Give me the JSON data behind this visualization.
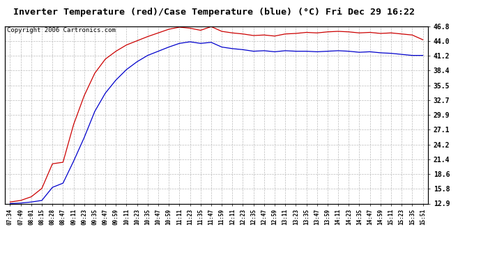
{
  "title": "Inverter Temperature (red)/Case Temperature (blue) (°C) Fri Dec 29 16:22",
  "copyright": "Copyright 2006 Cartronics.com",
  "ylabel_ticks": [
    12.9,
    15.8,
    18.6,
    21.4,
    24.2,
    27.1,
    29.9,
    32.7,
    35.5,
    38.4,
    41.2,
    44.0,
    46.8
  ],
  "ylim": [
    12.9,
    46.8
  ],
  "x_labels": [
    "07:34",
    "07:49",
    "08:01",
    "08:15",
    "08:28",
    "08:47",
    "09:11",
    "09:23",
    "09:35",
    "09:47",
    "09:59",
    "10:11",
    "10:23",
    "10:35",
    "10:47",
    "10:59",
    "11:11",
    "11:23",
    "11:35",
    "11:47",
    "11:59",
    "12:11",
    "12:23",
    "12:35",
    "12:47",
    "12:59",
    "13:11",
    "13:23",
    "13:35",
    "13:47",
    "13:59",
    "14:11",
    "14:23",
    "14:35",
    "14:47",
    "14:59",
    "15:11",
    "15:23",
    "15:35",
    "15:51"
  ],
  "red_data": [
    13.2,
    13.5,
    14.2,
    15.8,
    20.5,
    20.8,
    28.0,
    33.5,
    37.8,
    40.5,
    42.0,
    43.2,
    44.0,
    44.8,
    45.5,
    46.2,
    46.6,
    46.4,
    46.0,
    46.7,
    45.8,
    45.5,
    45.3,
    45.0,
    45.1,
    44.9,
    45.3,
    45.4,
    45.6,
    45.5,
    45.7,
    45.8,
    45.7,
    45.5,
    45.6,
    45.4,
    45.5,
    45.3,
    45.1,
    44.2
  ],
  "blue_data": [
    12.9,
    13.0,
    13.2,
    13.5,
    16.0,
    16.8,
    21.0,
    25.5,
    30.5,
    34.0,
    36.5,
    38.5,
    40.0,
    41.2,
    42.0,
    42.8,
    43.5,
    43.8,
    43.5,
    43.7,
    42.8,
    42.5,
    42.3,
    42.0,
    42.1,
    41.9,
    42.1,
    42.0,
    42.0,
    41.9,
    42.0,
    42.1,
    42.0,
    41.8,
    41.9,
    41.7,
    41.6,
    41.4,
    41.2,
    41.2
  ],
  "red_color": "#cc0000",
  "blue_color": "#0000cc",
  "bg_color": "#ffffff",
  "grid_color": "#bbbbbb",
  "title_fontsize": 9.5,
  "copyright_fontsize": 6.5
}
